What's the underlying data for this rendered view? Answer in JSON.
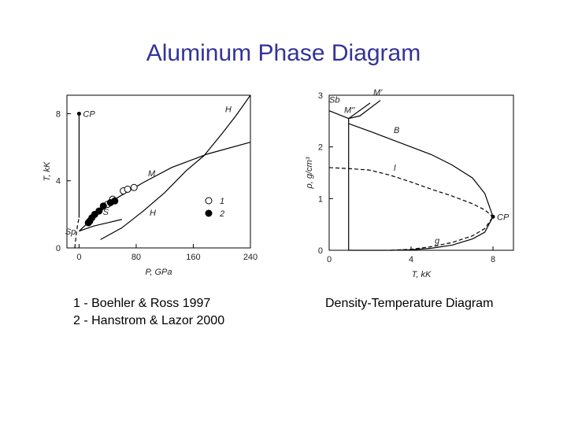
{
  "title": "Aluminum Phase Diagram",
  "captions": [
    "1 - Boehler & Ross 1997",
    "2 - Hanstrom & Lazor 2000",
    "Density-Temperature Diagram"
  ],
  "chart_data": [
    {
      "type": "line",
      "x_label": "P, GPa",
      "y_label": "T, kK",
      "xlim": [
        -17,
        240
      ],
      "ylim": [
        0,
        9.1
      ],
      "xticks": [
        0,
        80,
        160,
        240
      ],
      "yticks": [
        0,
        4,
        8
      ],
      "series": [
        {
          "color": "#000000",
          "x": [
            0,
            0
          ],
          "values": [
            1.8,
            8
          ]
        },
        {
          "name": "Sp",
          "color": "#000000",
          "dash": true,
          "x": [
            -6,
            -4,
            -2,
            0
          ],
          "values": [
            0,
            0.8,
            1.4,
            1.8
          ]
        },
        {
          "name": "M",
          "color": "#000000",
          "x": [
            0,
            20,
            50,
            90,
            130,
            180,
            240
          ],
          "values": [
            1.0,
            1.8,
            2.9,
            3.9,
            4.8,
            5.6,
            6.3
          ]
        },
        {
          "name": "H",
          "color": "#000000",
          "x": [
            30,
            60,
            90,
            120,
            150,
            175
          ],
          "values": [
            0.5,
            1.2,
            2.2,
            3.3,
            4.6,
            5.5
          ]
        },
        {
          "name": "H",
          "color": "#000000",
          "x": [
            175,
            200,
            220,
            240
          ],
          "values": [
            5.5,
            6.8,
            7.9,
            9.1
          ]
        },
        {
          "name": "S",
          "color": "#000000",
          "x": [
            0,
            20,
            40,
            60
          ],
          "values": [
            1.0,
            1.3,
            1.5,
            1.7
          ]
        },
        {
          "name": "1",
          "type": "scatter",
          "marker": "open",
          "color": "#000000",
          "x": [
            40,
            47,
            62,
            68,
            77
          ],
          "values": [
            2.6,
            2.9,
            3.4,
            3.5,
            3.6
          ]
        },
        {
          "name": "2",
          "type": "scatter",
          "marker": "filled",
          "color": "#000000",
          "x": [
            13,
            15,
            18,
            22,
            28,
            34,
            44,
            50
          ],
          "values": [
            1.5,
            1.6,
            1.8,
            2.0,
            2.2,
            2.5,
            2.7,
            2.8
          ]
        }
      ],
      "annotations": [
        {
          "text": "CP",
          "x": 0,
          "y": 8
        }
      ]
    },
    {
      "type": "line",
      "x_label": "T, kK",
      "y_label": "ρ, g/cm³",
      "xlim": [
        0,
        9
      ],
      "ylim": [
        0,
        3
      ],
      "xticks": [
        0,
        4,
        8
      ],
      "yticks": [
        0,
        1,
        2,
        3
      ],
      "series": [
        {
          "color": "#000000",
          "x": [
            0.95,
            0.95
          ],
          "values": [
            0,
            2.55
          ]
        },
        {
          "name": "B",
          "color": "#000000",
          "x": [
            0.95,
            2,
            3,
            4,
            5,
            6,
            7,
            7.6,
            8,
            7.6,
            7,
            6,
            5,
            4,
            3,
            2,
            0.95
          ],
          "values": [
            2.45,
            2.3,
            2.15,
            2.0,
            1.85,
            1.65,
            1.4,
            1.1,
            0.65,
            0.35,
            0.22,
            0.1,
            0.04,
            0.01,
            0,
            0,
            0
          ]
        },
        {
          "name": "l",
          "color": "#000000",
          "dash": true,
          "x": [
            0,
            1,
            2,
            3,
            4,
            5,
            6,
            7,
            7.6,
            8
          ],
          "values": [
            1.6,
            1.58,
            1.55,
            1.45,
            1.32,
            1.18,
            1.05,
            0.9,
            0.78,
            0.65
          ]
        },
        {
          "name": "g",
          "color": "#000000",
          "dash": true,
          "x": [
            3,
            4,
            5,
            6,
            7,
            7.6,
            8
          ],
          "values": [
            0,
            0.02,
            0.07,
            0.15,
            0.28,
            0.42,
            0.65
          ]
        },
        {
          "name": "M'",
          "color": "#000000",
          "x": [
            0.95,
            2
          ],
          "values": [
            2.55,
            2.85
          ]
        },
        {
          "name": "M''",
          "color": "#000000",
          "x": [
            0.95,
            1.5,
            2.5
          ],
          "values": [
            2.55,
            2.6,
            2.9
          ]
        },
        {
          "name": "Sb",
          "color": "#000000",
          "x": [
            0,
            0.95
          ],
          "values": [
            2.7,
            2.55
          ]
        }
      ],
      "annotations": [
        {
          "text": "CP",
          "x": 8,
          "y": 0.65
        }
      ]
    }
  ]
}
